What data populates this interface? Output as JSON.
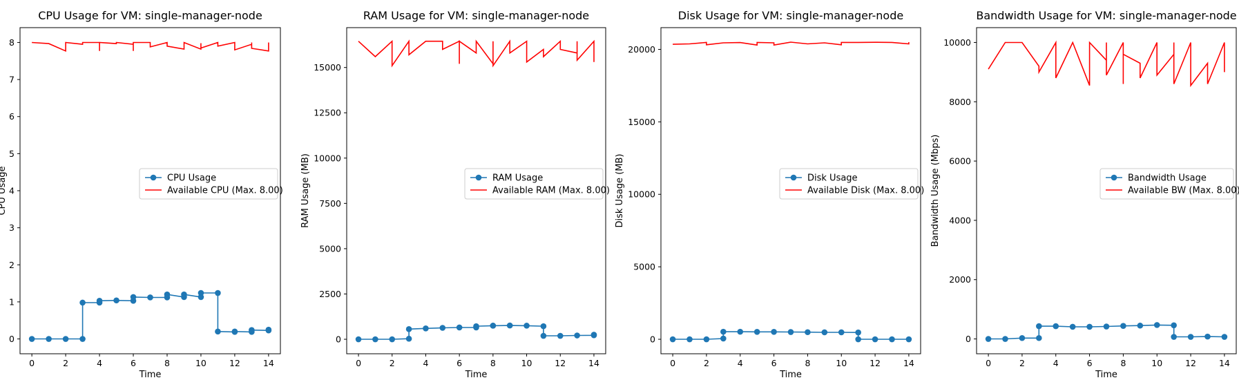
{
  "colors": {
    "usage": "#1f77b4",
    "available": "#ff0000"
  },
  "chart_data": [
    {
      "type": "line",
      "title": "CPU Usage for VM: single-manager-node",
      "xlabel": "Time",
      "ylabel": "CPU Usage",
      "xlim": [
        -0.7,
        14.7
      ],
      "ylim": [
        -0.4,
        8.4
      ],
      "xticks": [
        0,
        2,
        4,
        6,
        8,
        10,
        12,
        14
      ],
      "yticks": [
        0,
        1,
        2,
        3,
        4,
        5,
        6,
        7,
        8
      ],
      "legend_position": "center-right",
      "grid": false,
      "series": [
        {
          "name": "CPU Usage",
          "style": "line-marker",
          "x": [
            0,
            1,
            2,
            3,
            3,
            4,
            4,
            5,
            6,
            6,
            7,
            8,
            8,
            9,
            9,
            10,
            10,
            11,
            11,
            12,
            12,
            13,
            13,
            14,
            14
          ],
          "y": [
            0,
            0,
            0,
            0,
            0.98,
            0.98,
            1.03,
            1.04,
            1.03,
            1.13,
            1.12,
            1.12,
            1.2,
            1.13,
            1.2,
            1.13,
            1.24,
            1.24,
            0.2,
            0.19,
            0.2,
            0.19,
            0.24,
            0.23,
            0.25
          ]
        },
        {
          "name": "Available CPU (Max. 8.00)",
          "style": "line",
          "x": [
            0,
            1,
            2,
            2,
            3,
            3,
            4,
            4,
            4,
            5,
            5,
            6,
            6,
            6,
            7,
            7,
            8,
            8,
            9,
            9,
            10,
            10,
            10,
            11,
            11,
            11,
            12,
            12,
            13,
            13,
            13,
            14,
            14
          ],
          "y": [
            8.0,
            7.97,
            7.77,
            8.0,
            7.95,
            8.0,
            8.0,
            7.77,
            8.0,
            7.97,
            8.0,
            7.95,
            7.77,
            8.0,
            8.0,
            7.88,
            8.0,
            7.9,
            7.82,
            8.0,
            7.82,
            7.98,
            7.85,
            8.0,
            7.95,
            7.9,
            8.0,
            7.8,
            7.95,
            8.0,
            7.84,
            7.77,
            8.0
          ]
        }
      ]
    },
    {
      "type": "line",
      "title": "RAM Usage for VM: single-manager-node",
      "xlabel": "Time",
      "ylabel": "RAM Usage (MB)",
      "xlim": [
        -0.7,
        14.7
      ],
      "ylim": [
        -800,
        17200
      ],
      "xticks": [
        0,
        2,
        4,
        6,
        8,
        10,
        12,
        14
      ],
      "yticks": [
        0,
        2500,
        5000,
        7500,
        10000,
        12500,
        15000
      ],
      "legend_position": "center-right",
      "grid": false,
      "series": [
        {
          "name": "RAM Usage",
          "style": "line-marker",
          "x": [
            0,
            1,
            2,
            3,
            3,
            4,
            5,
            6,
            7,
            7,
            8,
            8,
            9,
            10,
            11,
            11,
            12,
            13,
            14,
            14
          ],
          "y": [
            0,
            0,
            0,
            30,
            560,
            600,
            630,
            650,
            650,
            720,
            750,
            750,
            760,
            750,
            720,
            190,
            190,
            210,
            220,
            250
          ]
        },
        {
          "name": "Available RAM (Max. 8.00)",
          "style": "line",
          "x": [
            0,
            1,
            2,
            2,
            3,
            3,
            4,
            5,
            5,
            6,
            6,
            6,
            7,
            7,
            8,
            8,
            8,
            9,
            9,
            10,
            10,
            11,
            11,
            11,
            12,
            12,
            13,
            13,
            13,
            14,
            14,
            14
          ],
          "y": [
            16450,
            15600,
            16450,
            15100,
            16450,
            15700,
            16450,
            16450,
            16000,
            16450,
            15200,
            16450,
            15800,
            16450,
            15200,
            16450,
            15100,
            16450,
            15800,
            16450,
            15300,
            16000,
            15800,
            15600,
            16450,
            16000,
            15800,
            16450,
            15400,
            16450,
            15300,
            16450
          ]
        }
      ]
    },
    {
      "type": "line",
      "title": "Disk Usage for VM: single-manager-node",
      "xlabel": "Time",
      "ylabel": "Disk Usage (MB)",
      "xlim": [
        -0.7,
        14.7
      ],
      "ylim": [
        -1000,
        21500
      ],
      "xticks": [
        0,
        2,
        4,
        6,
        8,
        10,
        12,
        14
      ],
      "yticks": [
        0,
        5000,
        10000,
        15000,
        20000
      ],
      "legend_position": "center-right",
      "grid": false,
      "series": [
        {
          "name": "Disk Usage",
          "style": "line-marker",
          "x": [
            0,
            1,
            2,
            3,
            3,
            4,
            5,
            6,
            7,
            8,
            9,
            10,
            11,
            11,
            12,
            13,
            14
          ],
          "y": [
            0,
            0,
            0,
            50,
            520,
            520,
            510,
            510,
            500,
            490,
            480,
            480,
            470,
            0,
            0,
            0,
            0
          ]
        },
        {
          "name": "Available Disk (Max. 8.00)",
          "style": "line",
          "x": [
            0,
            1,
            2,
            2,
            3,
            4,
            5,
            5,
            6,
            6,
            7,
            8,
            9,
            10,
            10,
            11,
            12,
            13,
            14,
            14
          ],
          "y": [
            20350,
            20380,
            20480,
            20320,
            20450,
            20470,
            20300,
            20480,
            20450,
            20300,
            20500,
            20380,
            20450,
            20320,
            20480,
            20480,
            20490,
            20480,
            20380,
            20500
          ]
        }
      ]
    },
    {
      "type": "line",
      "title": "Bandwidth Usage for VM: single-manager-node",
      "xlabel": "Time",
      "ylabel": "Bandwidth Usage (Mbps)",
      "xlim": [
        -0.7,
        14.7
      ],
      "ylim": [
        -500,
        10500
      ],
      "xticks": [
        0,
        2,
        4,
        6,
        8,
        10,
        12,
        14
      ],
      "yticks": [
        0,
        2000,
        4000,
        6000,
        8000,
        10000
      ],
      "legend_position": "center-right",
      "grid": false,
      "series": [
        {
          "name": "Bandwidth Usage",
          "style": "line-marker",
          "x": [
            0,
            1,
            2,
            3,
            3,
            4,
            5,
            6,
            7,
            8,
            9,
            10,
            11,
            11,
            12,
            13,
            14
          ],
          "y": [
            0,
            0,
            30,
            30,
            430,
            430,
            410,
            410,
            420,
            440,
            450,
            470,
            460,
            70,
            70,
            80,
            70
          ]
        },
        {
          "name": "Available BW (Max. 8.00)",
          "style": "line",
          "x": [
            0,
            1,
            2,
            3,
            3,
            4,
            4,
            5,
            6,
            6,
            7,
            7,
            7,
            8,
            8,
            8,
            9,
            9,
            10,
            10,
            11,
            11,
            11,
            12,
            12,
            13,
            13,
            14,
            14
          ],
          "y": [
            9100,
            10000,
            10000,
            9200,
            9000,
            10000,
            8800,
            10000,
            8550,
            10000,
            9400,
            10000,
            8900,
            10000,
            8600,
            9600,
            9300,
            8800,
            10000,
            8900,
            9600,
            10000,
            8600,
            10000,
            8550,
            9300,
            8600,
            10000,
            9000
          ]
        }
      ]
    }
  ]
}
